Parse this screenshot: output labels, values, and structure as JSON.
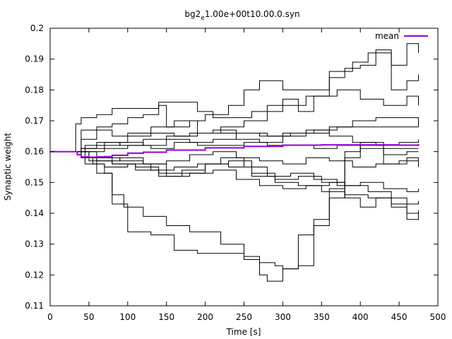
{
  "chart_data": {
    "type": "line",
    "title": "bg2",
    "title_subscript": "e",
    "title_rest": "1.00e+00t10.00.0.syn",
    "xlabel": "Time [s]",
    "ylabel": "Synaptic weight",
    "xlim": [
      0,
      500
    ],
    "ylim": [
      0.11,
      0.2
    ],
    "xticks": [
      0,
      50,
      100,
      150,
      200,
      250,
      300,
      350,
      400,
      450,
      500
    ],
    "yticks": [
      0.11,
      0.12,
      0.13,
      0.14,
      0.15,
      0.16,
      0.17,
      0.18,
      0.19,
      0.2
    ],
    "ytick_labels": [
      "0.11",
      "0.12",
      "0.13",
      "0.14",
      "0.15",
      "0.16",
      "0.17",
      "0.18",
      "0.19",
      "0.2"
    ],
    "legend": {
      "position": "top-right",
      "entries": [
        {
          "name": "mean",
          "color": "#9400d3"
        }
      ]
    },
    "grid": false,
    "series": [
      {
        "name": "mean",
        "color": "#9400d3",
        "width": 2,
        "x": [
          0,
          30,
          35,
          40,
          50,
          60,
          70,
          80,
          100,
          120,
          150,
          200,
          250,
          300,
          350,
          400,
          450,
          475
        ],
        "y": [
          0.16,
          0.16,
          0.159,
          0.1583,
          0.1582,
          0.1583,
          0.1584,
          0.1588,
          0.1595,
          0.1598,
          0.1605,
          0.1612,
          0.1617,
          0.1621,
          0.1622,
          0.1622,
          0.1621,
          0.1625
        ]
      },
      {
        "color": "#000000",
        "width": 1,
        "x": [
          0,
          30,
          33,
          40,
          60,
          80,
          100,
          120,
          140,
          160,
          190,
          210,
          240,
          260,
          300,
          330,
          360,
          380,
          400,
          420,
          440,
          460,
          475
        ],
        "y": [
          0.16,
          0.16,
          0.169,
          0.171,
          0.172,
          0.174,
          0.174,
          0.174,
          0.176,
          0.176,
          0.173,
          0.171,
          0.171,
          0.173,
          0.175,
          0.178,
          0.184,
          0.187,
          0.188,
          0.193,
          0.188,
          0.195,
          0.192
        ]
      },
      {
        "color": "#000000",
        "width": 1,
        "x": [
          0,
          30,
          40,
          60,
          80,
          100,
          120,
          140,
          150,
          180,
          200,
          230,
          250,
          270,
          300,
          330,
          360,
          390,
          410,
          440,
          460,
          475
        ],
        "y": [
          0.16,
          0.16,
          0.167,
          0.168,
          0.169,
          0.171,
          0.172,
          0.175,
          0.168,
          0.17,
          0.172,
          0.175,
          0.18,
          0.183,
          0.18,
          0.18,
          0.186,
          0.189,
          0.192,
          0.18,
          0.183,
          0.185
        ]
      },
      {
        "color": "#000000",
        "width": 1,
        "x": [
          0,
          30,
          40,
          60,
          80,
          100,
          130,
          160,
          190,
          220,
          250,
          280,
          300,
          320,
          340,
          370,
          400,
          430,
          460,
          475
        ],
        "y": [
          0.16,
          0.16,
          0.164,
          0.167,
          0.165,
          0.166,
          0.168,
          0.17,
          0.166,
          0.168,
          0.17,
          0.175,
          0.177,
          0.173,
          0.178,
          0.18,
          0.177,
          0.175,
          0.178,
          0.175
        ]
      },
      {
        "color": "#000000",
        "width": 1,
        "x": [
          0,
          30,
          45,
          60,
          90,
          120,
          150,
          180,
          210,
          240,
          270,
          300,
          330,
          360,
          390,
          420,
          450,
          475
        ],
        "y": [
          0.16,
          0.16,
          0.162,
          0.163,
          0.162,
          0.164,
          0.165,
          0.166,
          0.167,
          0.164,
          0.163,
          0.165,
          0.166,
          0.168,
          0.17,
          0.171,
          0.171,
          0.168
        ]
      },
      {
        "color": "#000000",
        "width": 1,
        "x": [
          0,
          30,
          40,
          60,
          90,
          120,
          150,
          180,
          210,
          240,
          270,
          300,
          330,
          360,
          390,
          420,
          450,
          475
        ],
        "y": [
          0.16,
          0.16,
          0.161,
          0.162,
          0.163,
          0.162,
          0.164,
          0.163,
          0.164,
          0.166,
          0.165,
          0.166,
          0.167,
          0.165,
          0.163,
          0.162,
          0.163,
          0.164
        ]
      },
      {
        "color": "#000000",
        "width": 1,
        "x": [
          0,
          30,
          40,
          70,
          100,
          130,
          160,
          190,
          220,
          250,
          280,
          310,
          340,
          370,
          400,
          430,
          460,
          475
        ],
        "y": [
          0.16,
          0.16,
          0.16,
          0.161,
          0.162,
          0.161,
          0.163,
          0.162,
          0.162,
          0.163,
          0.162,
          0.162,
          0.161,
          0.162,
          0.161,
          0.161,
          0.161,
          0.161
        ]
      },
      {
        "color": "#000000",
        "width": 1,
        "x": [
          0,
          30,
          40,
          60,
          90,
          120,
          150,
          180,
          210,
          240,
          270,
          300,
          330,
          360,
          390,
          420,
          450,
          475
        ],
        "y": [
          0.16,
          0.16,
          0.158,
          0.157,
          0.158,
          0.156,
          0.157,
          0.159,
          0.16,
          0.158,
          0.157,
          0.156,
          0.158,
          0.157,
          0.155,
          0.156,
          0.157,
          0.155
        ]
      },
      {
        "color": "#000000",
        "width": 1,
        "x": [
          0,
          30,
          45,
          70,
          100,
          130,
          160,
          190,
          220,
          250,
          280,
          310,
          340,
          370,
          400,
          430,
          460,
          475
        ],
        "y": [
          0.16,
          0.16,
          0.156,
          0.155,
          0.156,
          0.154,
          0.155,
          0.156,
          0.158,
          0.155,
          0.152,
          0.153,
          0.151,
          0.149,
          0.15,
          0.148,
          0.147,
          0.148
        ]
      },
      {
        "color": "#000000",
        "width": 1,
        "x": [
          0,
          30,
          50,
          80,
          110,
          140,
          170,
          200,
          230,
          260,
          290,
          320,
          350,
          380,
          410,
          440,
          460,
          475
        ],
        "y": [
          0.16,
          0.16,
          0.157,
          0.156,
          0.154,
          0.152,
          0.153,
          0.156,
          0.155,
          0.153,
          0.151,
          0.152,
          0.15,
          0.149,
          0.147,
          0.145,
          0.143,
          0.144
        ]
      },
      {
        "color": "#000000",
        "width": 1,
        "x": [
          0,
          30,
          50,
          80,
          110,
          140,
          170,
          200,
          230,
          260,
          290,
          320,
          350,
          380,
          410,
          440,
          460,
          475
        ],
        "y": [
          0.16,
          0.16,
          0.158,
          0.156,
          0.155,
          0.153,
          0.154,
          0.156,
          0.157,
          0.152,
          0.15,
          0.149,
          0.147,
          0.146,
          0.145,
          0.142,
          0.14,
          0.141
        ]
      },
      {
        "color": "#000000",
        "width": 1,
        "x": [
          0,
          30,
          60,
          90,
          120,
          150,
          180,
          210,
          240,
          270,
          300,
          330,
          360,
          380,
          400,
          420,
          440,
          460,
          475
        ],
        "y": [
          0.16,
          0.16,
          0.158,
          0.157,
          0.156,
          0.152,
          0.153,
          0.154,
          0.151,
          0.149,
          0.148,
          0.149,
          0.15,
          0.145,
          0.142,
          0.145,
          0.143,
          0.138,
          0.14
        ]
      },
      {
        "color": "#000000",
        "width": 1,
        "x": [
          0,
          30,
          40,
          60,
          80,
          100,
          130,
          160,
          190,
          220,
          250,
          270,
          290,
          300,
          320,
          340,
          360,
          380,
          400,
          430,
          460,
          475
        ],
        "y": [
          0.16,
          0.16,
          0.158,
          0.153,
          0.143,
          0.134,
          0.133,
          0.128,
          0.127,
          0.127,
          0.125,
          0.124,
          0.123,
          0.122,
          0.123,
          0.136,
          0.145,
          0.16,
          0.163,
          0.159,
          0.16,
          0.16
        ]
      },
      {
        "color": "#000000",
        "width": 1,
        "x": [
          0,
          30,
          40,
          55,
          70,
          80,
          95,
          120,
          150,
          180,
          220,
          250,
          270,
          280,
          285,
          300,
          320,
          340,
          360,
          380,
          400,
          430,
          460,
          475
        ],
        "y": [
          0.16,
          0.16,
          0.158,
          0.156,
          0.153,
          0.146,
          0.142,
          0.139,
          0.136,
          0.134,
          0.13,
          0.126,
          0.12,
          0.118,
          0.118,
          0.122,
          0.133,
          0.138,
          0.148,
          0.158,
          0.162,
          0.156,
          0.158,
          0.157
        ]
      },
      {
        "color": "#000000",
        "width": 1,
        "x": [
          0,
          30,
          40,
          70,
          100,
          130,
          160,
          190,
          220,
          250,
          280,
          310,
          340,
          370,
          400,
          430,
          460,
          475
        ],
        "y": [
          0.16,
          0.16,
          0.161,
          0.163,
          0.165,
          0.166,
          0.165,
          0.166,
          0.166,
          0.166,
          0.165,
          0.166,
          0.167,
          0.168,
          0.168,
          0.168,
          0.168,
          0.168
        ]
      }
    ]
  }
}
